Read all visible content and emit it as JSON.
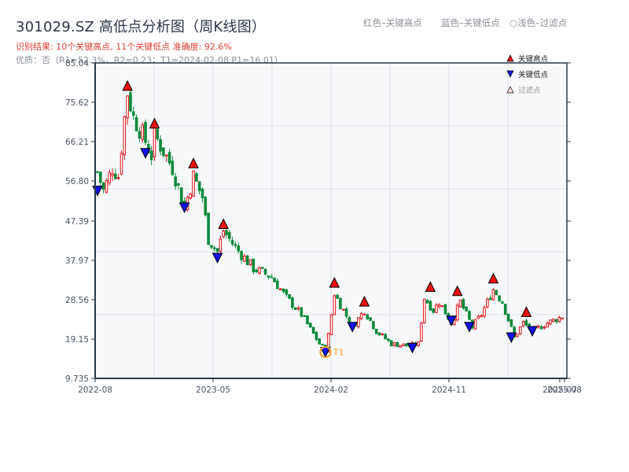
{
  "header": {
    "title": "301029.SZ 高低点分析图（周K线图）",
    "result_line": "识别结果: 10个关键高点, 11个关键低点   准确度: 92.6%",
    "quality_line": "优质：否（R1=52.3%，R2=0.23；T1=2024-02-08 P1=16.01）"
  },
  "top_legend": {
    "red": "红色–关键高点",
    "blue": "蓝色–关键低点",
    "light": "○浅色–过滤点"
  },
  "legend": {
    "items": [
      {
        "label": "关键高点",
        "marker": "triangle-up",
        "color": "#e8141c"
      },
      {
        "label": "关键低点",
        "marker": "triangle-down",
        "color": "#1414e0"
      },
      {
        "label": "过滤点",
        "marker": "triangle-up-outline",
        "color": "#f4c6c6"
      }
    ]
  },
  "colors": {
    "up": "#e0141c",
    "down": "#0a8a3a",
    "high_marker": "#ee1111",
    "low_marker": "#1111ee",
    "t1_ring": "#f0a030",
    "plot_bg": "#f6f8fa",
    "grid": "#dde1e6",
    "axis": "#2b3a4a"
  },
  "chart_data": {
    "type": "candlestick",
    "title": "301029.SZ 高低点分析图（周K线图）",
    "xlabel": "",
    "ylabel": "",
    "ylim": [
      9.735,
      85.04
    ],
    "y_ticks": [
      9.735,
      19.15,
      28.56,
      37.97,
      47.39,
      56.8,
      66.21,
      75.62,
      85.04
    ],
    "x_ticks": [
      "2022-08",
      "2023-05",
      "2024-02",
      "2024-11",
      "2025-07",
      "2025-08"
    ],
    "grid": true,
    "legend_position": "top-right",
    "close_path_keypoints": [
      {
        "week": 0,
        "price": 59
      },
      {
        "week": 2,
        "price": 54.5
      },
      {
        "week": 5,
        "price": 60
      },
      {
        "week": 7,
        "price": 58
      },
      {
        "week": 9,
        "price": 72
      },
      {
        "week": 10,
        "price": 78
      },
      {
        "week": 12,
        "price": 72
      },
      {
        "week": 15,
        "price": 68
      },
      {
        "week": 18,
        "price": 63
      },
      {
        "week": 19,
        "price": 68
      },
      {
        "week": 22,
        "price": 64
      },
      {
        "week": 25,
        "price": 60
      },
      {
        "week": 29,
        "price": 50.5
      },
      {
        "week": 32,
        "price": 58
      },
      {
        "week": 35,
        "price": 53
      },
      {
        "week": 37,
        "price": 43
      },
      {
        "week": 40,
        "price": 40
      },
      {
        "week": 42,
        "price": 45
      },
      {
        "week": 46,
        "price": 41
      },
      {
        "week": 52,
        "price": 36
      },
      {
        "week": 58,
        "price": 34
      },
      {
        "week": 63,
        "price": 29
      },
      {
        "week": 68,
        "price": 25
      },
      {
        "week": 74,
        "price": 18
      },
      {
        "week": 76,
        "price": 16.5
      },
      {
        "week": 77,
        "price": 20
      },
      {
        "week": 79,
        "price": 30
      },
      {
        "week": 82,
        "price": 26
      },
      {
        "week": 85,
        "price": 22
      },
      {
        "week": 89,
        "price": 26
      },
      {
        "week": 93,
        "price": 21
      },
      {
        "week": 98,
        "price": 18
      },
      {
        "week": 104,
        "price": 17.5
      },
      {
        "week": 107,
        "price": 18
      },
      {
        "week": 109,
        "price": 29
      },
      {
        "week": 112,
        "price": 26
      },
      {
        "week": 114,
        "price": 28
      },
      {
        "week": 118,
        "price": 23
      },
      {
        "week": 121,
        "price": 28
      },
      {
        "week": 125,
        "price": 22
      },
      {
        "week": 128,
        "price": 25
      },
      {
        "week": 132,
        "price": 31
      },
      {
        "week": 135,
        "price": 28
      },
      {
        "week": 139,
        "price": 19.5
      },
      {
        "week": 142,
        "price": 23
      },
      {
        "week": 145,
        "price": 21
      },
      {
        "week": 150,
        "price": 23
      },
      {
        "week": 155,
        "price": 24.5
      }
    ],
    "key_highs": [
      {
        "week": 10,
        "price": 78.5
      },
      {
        "week": 19,
        "price": 69.5
      },
      {
        "week": 32,
        "price": 60
      },
      {
        "week": 42,
        "price": 45.5
      },
      {
        "week": 79,
        "price": 31.5
      },
      {
        "week": 89,
        "price": 27
      },
      {
        "week": 111,
        "price": 30.5
      },
      {
        "week": 120,
        "price": 29.5
      },
      {
        "week": 132,
        "price": 32.5
      },
      {
        "week": 143,
        "price": 24.5
      }
    ],
    "key_lows": [
      {
        "week": 0,
        "price": 54.5
      },
      {
        "week": 16,
        "price": 63.5
      },
      {
        "week": 29,
        "price": 50.5
      },
      {
        "week": 40,
        "price": 38.5
      },
      {
        "week": 76,
        "price": 16
      },
      {
        "week": 85,
        "price": 22
      },
      {
        "week": 105,
        "price": 17
      },
      {
        "week": 118,
        "price": 23.5
      },
      {
        "week": 124,
        "price": 22
      },
      {
        "week": 138,
        "price": 19.5
      },
      {
        "week": 145,
        "price": 21
      }
    ],
    "annotations": [
      {
        "label": "T1",
        "week": 76,
        "price": 16.01,
        "date": "2024-02-08"
      }
    ],
    "series": [
      {
        "name": "关键高点",
        "count": 10
      },
      {
        "name": "关键低点",
        "count": 11
      }
    ]
  }
}
